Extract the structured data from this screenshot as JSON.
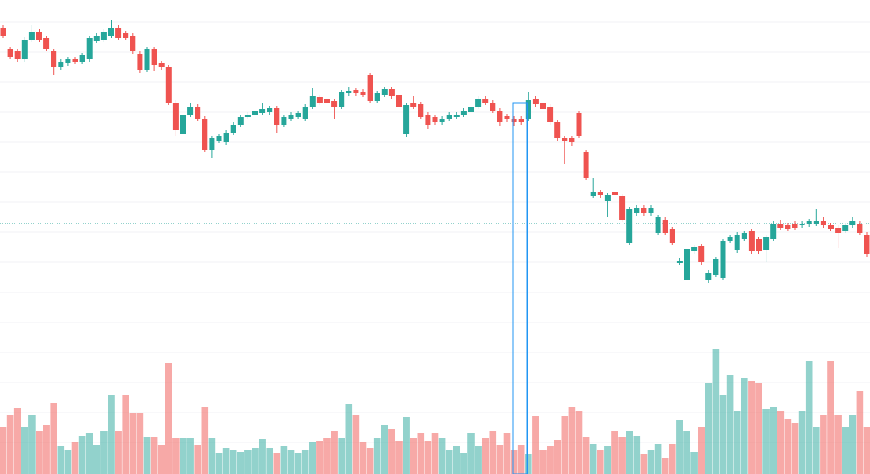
{
  "chart_data": {
    "type": "candlestick",
    "open": [
      565,
      538,
      535,
      525,
      550,
      560,
      552,
      535,
      515,
      520,
      525,
      522,
      525,
      548,
      550,
      555,
      565,
      558,
      555,
      532,
      512,
      538,
      520,
      515,
      470,
      430,
      455,
      465,
      450,
      410,
      422,
      420,
      432,
      442,
      452,
      455,
      457,
      458,
      463,
      442,
      450,
      452,
      450,
      465,
      477,
      475,
      472,
      465,
      482,
      486,
      484,
      505,
      472,
      480,
      487,
      480,
      430,
      470,
      468,
      455,
      452,
      445,
      450,
      452,
      455,
      458,
      465,
      475,
      470,
      460,
      453,
      450,
      450,
      450,
      475,
      470,
      465,
      445,
      425,
      425,
      457,
      407,
      352,
      357,
      345,
      357,
      352,
      293,
      330,
      337,
      330,
      305,
      322,
      310,
      267,
      245,
      282,
      288,
      245,
      252,
      248,
      295,
      283,
      298,
      307,
      297,
      283,
      298,
      317,
      315,
      317,
      315,
      316,
      317,
      320,
      315,
      312,
      308,
      315,
      317,
      303
    ],
    "high": [
      568,
      541,
      538,
      553,
      568,
      563,
      555,
      538,
      525,
      528,
      528,
      533,
      555,
      558,
      563,
      575,
      568,
      561,
      558,
      535,
      541,
      541,
      523,
      518,
      473,
      458,
      470,
      468,
      453,
      428,
      431,
      435,
      445,
      455,
      458,
      465,
      470,
      466,
      466,
      455,
      458,
      460,
      468,
      488,
      480,
      478,
      475,
      486,
      490,
      489,
      487,
      508,
      485,
      490,
      490,
      483,
      470,
      478,
      471,
      458,
      455,
      453,
      458,
      458,
      463,
      468,
      478,
      478,
      473,
      463,
      456,
      453,
      453,
      484,
      478,
      473,
      468,
      448,
      428,
      428,
      460,
      410,
      375,
      360,
      356,
      362,
      355,
      338,
      340,
      340,
      340,
      328,
      325,
      313,
      273,
      288,
      290,
      291,
      258,
      275,
      298,
      303,
      306,
      308,
      310,
      300,
      303,
      320,
      322,
      318,
      320,
      320,
      323,
      335,
      325,
      318,
      315,
      318,
      325,
      320,
      306
    ],
    "low": [
      552,
      525,
      522,
      522,
      547,
      547,
      535,
      505,
      512,
      517,
      519,
      519,
      522,
      545,
      547,
      552,
      549,
      549,
      532,
      508,
      509,
      510,
      512,
      467,
      428,
      427,
      452,
      447,
      407,
      400,
      419,
      417,
      429,
      439,
      449,
      452,
      454,
      455,
      432,
      439,
      447,
      449,
      447,
      462,
      467,
      467,
      450,
      462,
      479,
      479,
      477,
      469,
      469,
      477,
      475,
      462,
      427,
      462,
      449,
      437,
      442,
      442,
      447,
      449,
      452,
      455,
      462,
      467,
      457,
      440,
      445,
      440,
      442,
      447,
      465,
      459,
      442,
      422,
      392,
      415,
      425,
      372,
      349,
      350,
      325,
      350,
      319,
      290,
      327,
      327,
      327,
      302,
      302,
      290,
      264,
      242,
      279,
      265,
      242,
      249,
      245,
      292,
      280,
      295,
      279,
      279,
      268,
      295,
      309,
      307,
      309,
      312,
      313,
      314,
      312,
      307,
      286,
      305,
      312,
      302,
      275
    ],
    "close": [
      555,
      528,
      525,
      550,
      560,
      550,
      538,
      515,
      522,
      525,
      522,
      530,
      552,
      555,
      560,
      565,
      552,
      552,
      535,
      512,
      538,
      518,
      515,
      470,
      435,
      455,
      465,
      450,
      410,
      425,
      428,
      432,
      442,
      452,
      455,
      460,
      462,
      463,
      442,
      452,
      455,
      457,
      465,
      478,
      470,
      470,
      465,
      483,
      485,
      482,
      480,
      472,
      482,
      487,
      478,
      465,
      467,
      465,
      452,
      442,
      445,
      450,
      455,
      455,
      460,
      465,
      475,
      470,
      460,
      445,
      450,
      445,
      445,
      473,
      468,
      462,
      445,
      425,
      422,
      420,
      428,
      375,
      357,
      353,
      353,
      353,
      322,
      335,
      337,
      330,
      337,
      325,
      305,
      293,
      270,
      285,
      287,
      268,
      255,
      272,
      295,
      300,
      303,
      305,
      282,
      282,
      300,
      317,
      312,
      310,
      312,
      317,
      320,
      320,
      315,
      310,
      305,
      315,
      320,
      305,
      278
    ],
    "volume": [
      60,
      75,
      83,
      60,
      75,
      55,
      62,
      90,
      35,
      30,
      40,
      48,
      52,
      37,
      55,
      100,
      55,
      100,
      77,
      77,
      47,
      47,
      37,
      140,
      45,
      45,
      45,
      37,
      85,
      45,
      27,
      33,
      31,
      28,
      30,
      33,
      44,
      33,
      27,
      35,
      30,
      27,
      30,
      40,
      42,
      45,
      55,
      45,
      88,
      75,
      40,
      33,
      45,
      62,
      57,
      42,
      72,
      45,
      52,
      42,
      52,
      45,
      30,
      35,
      26,
      52,
      35,
      45,
      55,
      37,
      52,
      30,
      37,
      25,
      73,
      30,
      35,
      43,
      73,
      85,
      80,
      47,
      38,
      30,
      35,
      55,
      47,
      55,
      48,
      25,
      30,
      38,
      20,
      38,
      68,
      55,
      28,
      60,
      115,
      158,
      100,
      125,
      80,
      122,
      118,
      115,
      82,
      85,
      80,
      70,
      65,
      80,
      143,
      60,
      75,
      143,
      75,
      60,
      75,
      105,
      60
    ],
    "up_color": "#26a69a",
    "down_color": "#ef5350",
    "ylim": [
      0,
      600
    ],
    "volume_lim": [
      0,
      600
    ],
    "grid": true,
    "grid_values": [
      572,
      534,
      496,
      458,
      420,
      382,
      344,
      306,
      268,
      230,
      192,
      154,
      116,
      78,
      40
    ],
    "price_line": 317
  }
}
